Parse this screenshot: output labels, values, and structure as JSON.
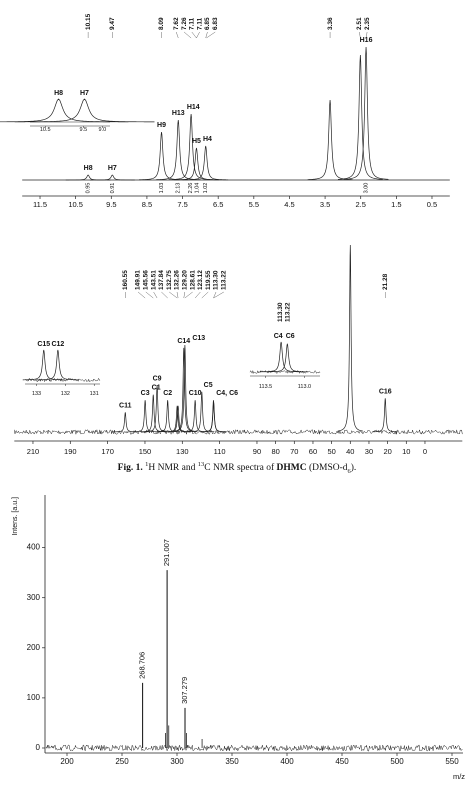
{
  "chart_data": [
    {
      "type": "nmr",
      "shift_labels": [
        10.15,
        9.47,
        8.09,
        7.62,
        7.26,
        7.11,
        7.11,
        6.85,
        6.83,
        3.36,
        2.51,
        2.35
      ],
      "peaks": [
        {
          "shift": 10.15,
          "height": 5,
          "label": "H8",
          "integral": 0.95
        },
        {
          "shift": 9.47,
          "height": 5,
          "label": "H7",
          "integral": 0.91
        },
        {
          "shift": 8.09,
          "height": 48,
          "label": "H9",
          "integral": 1.03
        },
        {
          "shift": 7.62,
          "height": 60,
          "label": "H13",
          "integral": 2.13
        },
        {
          "shift": 7.26,
          "height": 66,
          "label": "H14",
          "integral": 2.26
        },
        {
          "shift": 7.11,
          "height": 32,
          "label": "H5",
          "integral": 1.04
        },
        {
          "shift": 6.85,
          "height": 34,
          "label": "H4",
          "integral": 1.02
        },
        {
          "shift": 3.36,
          "height": 80
        },
        {
          "shift": 2.51,
          "height": 125
        },
        {
          "shift": 2.35,
          "height": 133,
          "label": "H16",
          "integral": {
            "value": 3,
            "label": "3.00"
          }
        }
      ],
      "xlim": [
        12,
        0
      ],
      "xticks": [
        11.5,
        10.5,
        9.5,
        8.5,
        7.5,
        6.5,
        5.5,
        4.5,
        3.5,
        2.5,
        1.5,
        0.5
      ],
      "ylim": [
        0,
        140
      ],
      "insets": [
        {
          "labels": [
            "H8",
            "H7"
          ],
          "xlim": [
            10.9,
            8.8
          ],
          "xticks": [
            10.5,
            9.5,
            {
              "value": 9,
              "label": "9.0"
            }
          ]
        }
      ]
    },
    {
      "type": "nmr",
      "shift_labels": [
        160.55,
        149.91,
        145.56,
        143.51,
        137.84,
        132.75,
        132.26,
        {
          "value": 129.2,
          "label": "129.20"
        },
        128.61,
        123.12,
        119.55,
        {
          "value": 113.3,
          "label": "113.30"
        },
        113.22,
        21.28
      ],
      "peaks": [
        {
          "shift": 160.55,
          "height": 21,
          "label": "C11"
        },
        {
          "shift": 149.91,
          "height": 34,
          "label": "C3"
        },
        {
          "shift": 145.56,
          "height": 40,
          "label": "C1"
        },
        {
          "shift": 143.51,
          "height": 50,
          "label": "C9"
        },
        {
          "shift": 137.84,
          "height": 34,
          "label": "C2"
        },
        {
          "shift": 132.75,
          "height": 28
        },
        {
          "shift": 132.26,
          "height": 28
        },
        {
          "shift": 129.2,
          "height": 90,
          "label": "C14"
        },
        {
          "shift": 128.61,
          "height": 93,
          "label": "C13"
        },
        {
          "shift": 123.12,
          "height": 34,
          "label": "C10"
        },
        {
          "shift": 119.55,
          "height": 43,
          "label": "C5"
        },
        {
          "shift": 113.3,
          "height": 34,
          "label": "C4, C6"
        },
        {
          "shift": 113.22,
          "height": 32
        },
        {
          "shift": 40,
          "height": 200
        },
        {
          "shift": 21.28,
          "height": 36,
          "label": "C16"
        }
      ],
      "xlim": [
        220,
        -20
      ],
      "xticks": [
        210,
        190,
        170,
        150,
        130,
        110,
        90,
        80,
        70,
        60,
        50,
        40,
        30,
        20,
        10,
        0
      ],
      "ylim": [
        0,
        200
      ],
      "insets": [
        {
          "labels": [
            "C15",
            "C12"
          ],
          "xlim": [
            133.4,
            130.8
          ],
          "xticks": [
            133,
            132,
            131
          ]
        },
        {
          "labels": [
            "C4",
            "C6"
          ],
          "xlim": [
            113.7,
            112.8
          ],
          "xticks": [
            113.5,
            {
              "value": 113,
              "label": "113.0"
            }
          ],
          "shift_labels": [
            {
              "value": 113.3,
              "label": "113.30"
            },
            113.22
          ]
        }
      ]
    },
    {
      "type": "mass",
      "ylabel": "Intens. [a.u.]",
      "xlabel": "m/z",
      "xlim": [
        180,
        560
      ],
      "xticks": [
        200,
        250,
        300,
        350,
        400,
        450,
        500,
        550
      ],
      "ylim": [
        -10,
        505
      ],
      "yticks": [
        0,
        100,
        200,
        300,
        400
      ],
      "peaks": [
        {
          "mz": 268.706,
          "intensity": 130
        },
        {
          "mz": 291.007,
          "intensity": 355
        },
        {
          "mz": 307.279,
          "intensity": 80
        }
      ],
      "other_peaks": [
        {
          "mz": 289.6,
          "intensity": 30
        },
        {
          "mz": 292.5,
          "intensity": 45
        },
        {
          "mz": 308.7,
          "intensity": 30
        },
        {
          "mz": 322.8,
          "intensity": 18
        }
      ]
    }
  ],
  "caption": {
    "pieces": [
      "Fig. 1.",
      "1",
      "H NMR and ",
      "13",
      "C NMR spectra of ",
      "DHMC",
      " (DMSO-d",
      "6",
      ")."
    ]
  }
}
